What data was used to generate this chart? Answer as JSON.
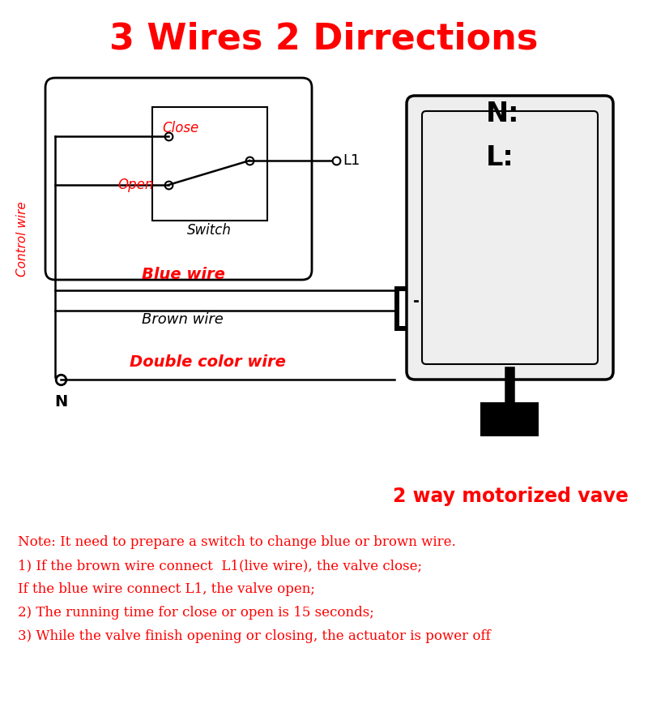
{
  "title": "3 Wires 2 Dirrections",
  "title_color": "#FF0000",
  "title_fontsize": 32,
  "bg_color": "#FFFFFF",
  "diagram_color": "#000000",
  "red_color": "#FF0000",
  "note_lines": [
    "Note: It need to prepare a switch to change blue or brown wire.",
    "1) If the brown wire connect  L1(live wire), the valve close;",
    "If the blue wire connect L1, the valve open;",
    "2) The running time for close or open is 15 seconds;",
    "3) While the valve finish opening or closing, the actuator is power off"
  ],
  "label_close": "Close",
  "label_open": "Open",
  "label_switch": "Switch",
  "label_L1": "L1",
  "label_N_top": "N:",
  "label_L_top": "L:",
  "label_control_wire": "Control wire",
  "label_blue_wire": "Blue wire",
  "label_brown_wire": "Brown wire",
  "label_double_color_wire": "Double color wire",
  "label_N_bottom": "N",
  "label_motorized": "2 way motorized vave"
}
